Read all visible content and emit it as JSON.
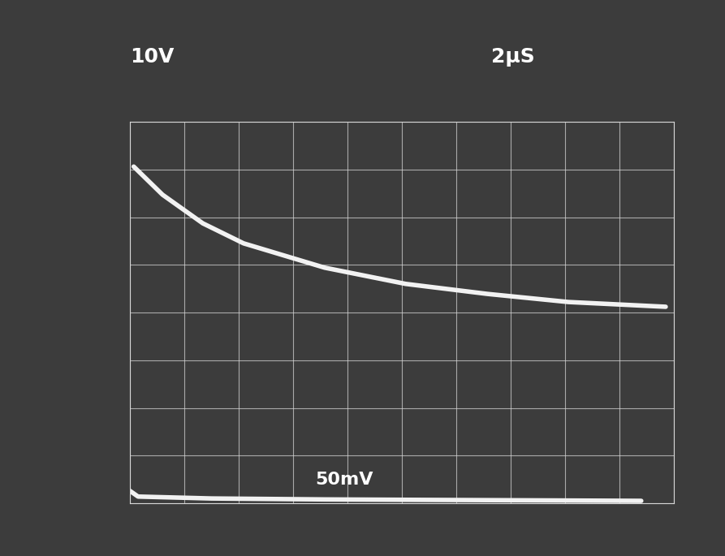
{
  "chart_data": {
    "type": "line",
    "annotations": [
      "10V",
      "2µS",
      "50mV"
    ],
    "series": [
      {
        "name": "10V",
        "color": "#f2f2f2",
        "x": [
          0.07,
          0.6,
          1.34,
          2.09,
          3.58,
          5.07,
          6.57,
          8.06,
          9.85
        ],
        "values": [
          7.06,
          6.47,
          5.87,
          5.45,
          4.94,
          4.6,
          4.39,
          4.22,
          4.12
        ]
      },
      {
        "name": "50mV",
        "color": "#f2f2f2",
        "x": [
          0.0,
          0.15,
          1.5,
          3.58,
          5.5,
          7.5,
          9.4
        ],
        "values": [
          0.26,
          0.14,
          0.1,
          0.08,
          0.07,
          0.06,
          0.05
        ]
      }
    ],
    "xlim": [
      0,
      10
    ],
    "ylim": [
      0,
      8
    ],
    "xticks": [
      0,
      1,
      2,
      3,
      4,
      5,
      6,
      7,
      8,
      9,
      10
    ],
    "yticks": [
      0,
      1,
      2,
      3,
      4,
      5,
      6,
      7,
      8
    ],
    "grid": true,
    "tick_labels": false,
    "color": "#3c3c3c"
  }
}
